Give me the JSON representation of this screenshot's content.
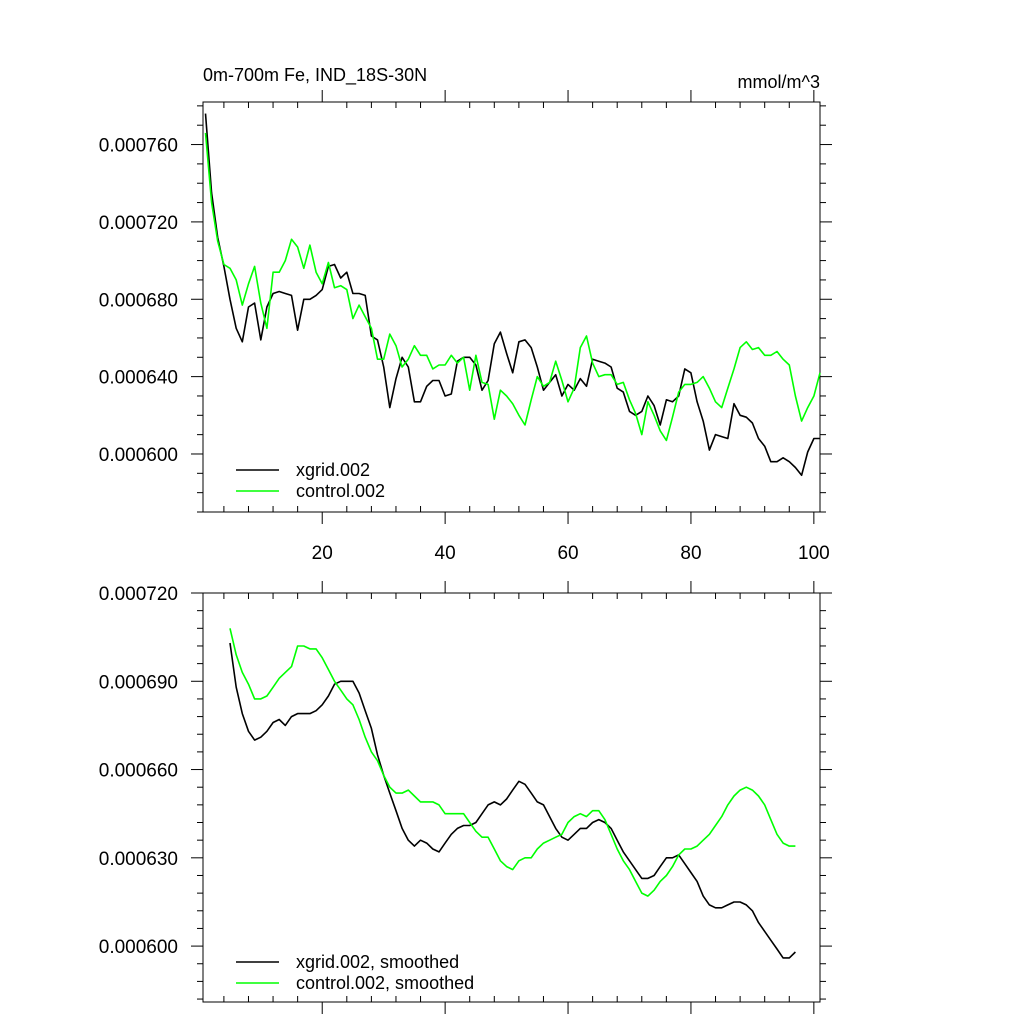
{
  "chart_data": [
    {
      "type": "line",
      "title": "0m-700m Fe, IND_18S-30N",
      "units": "mmol/m^3",
      "xlim": [
        0.6,
        101
      ],
      "ylim": [
        0.00057,
        0.000782
      ],
      "x_ticks": [
        20,
        40,
        60,
        80,
        100
      ],
      "x_tick_labels": [
        "20",
        "40",
        "60",
        "80",
        "100"
      ],
      "x_minor_step": 4,
      "y_ticks": [
        0.0006,
        0.00064,
        0.00068,
        0.00072,
        0.00076
      ],
      "y_tick_labels": [
        "0.000600",
        "0.000640",
        "0.000680",
        "0.000720",
        "0.000760"
      ],
      "y_minor_step": 1e-05,
      "legend": "bottom-left",
      "series": [
        {
          "name": "xgrid.002",
          "color": "#000000",
          "x": [
            1,
            2,
            3,
            4,
            5,
            6,
            7,
            8,
            9,
            10,
            11,
            12,
            13,
            14,
            15,
            16,
            17,
            18,
            19,
            20,
            21,
            22,
            23,
            24,
            25,
            26,
            27,
            28,
            29,
            30,
            31,
            32,
            33,
            34,
            35,
            36,
            37,
            38,
            39,
            40,
            41,
            42,
            43,
            44,
            45,
            46,
            47,
            48,
            49,
            50,
            51,
            52,
            53,
            54,
            55,
            56,
            57,
            58,
            59,
            60,
            61,
            62,
            63,
            64,
            65,
            66,
            67,
            68,
            69,
            70,
            71,
            72,
            73,
            74,
            75,
            76,
            77,
            78,
            79,
            80,
            81,
            82,
            83,
            84,
            85,
            86,
            87,
            88,
            89,
            90,
            91,
            92,
            93,
            94,
            95,
            96,
            97,
            98,
            99,
            100,
            101
          ],
          "values": [
            0.000776,
            0.000735,
            0.000712,
            0.000697,
            0.00068,
            0.000665,
            0.000658,
            0.000676,
            0.000678,
            0.000659,
            0.000676,
            0.000683,
            0.000684,
            0.000683,
            0.000682,
            0.000664,
            0.00068,
            0.00068,
            0.000682,
            0.000685,
            0.000697,
            0.000698,
            0.000691,
            0.000694,
            0.000683,
            0.000683,
            0.000682,
            0.000661,
            0.000659,
            0.000645,
            0.000624,
            0.000639,
            0.00065,
            0.000645,
            0.000627,
            0.000627,
            0.000635,
            0.000638,
            0.000638,
            0.00063,
            0.000631,
            0.000648,
            0.00065,
            0.00065,
            0.000646,
            0.000633,
            0.000638,
            0.000657,
            0.000663,
            0.000652,
            0.000642,
            0.000658,
            0.000659,
            0.000655,
            0.000645,
            0.000633,
            0.000637,
            0.000641,
            0.00063,
            0.000636,
            0.000633,
            0.000639,
            0.000635,
            0.000649,
            0.000648,
            0.000647,
            0.000645,
            0.000634,
            0.000632,
            0.000622,
            0.00062,
            0.000622,
            0.00063,
            0.000625,
            0.000615,
            0.000628,
            0.000627,
            0.00063,
            0.000644,
            0.000642,
            0.000627,
            0.000617,
            0.000602,
            0.00061,
            0.000609,
            0.000608,
            0.000626,
            0.00062,
            0.000619,
            0.000616,
            0.000608,
            0.000604,
            0.000596,
            0.000596,
            0.000598,
            0.000596,
            0.000593,
            0.000589,
            0.000601,
            0.000608,
            0.000608
          ]
        },
        {
          "name": "control.002",
          "color": "#00ff00",
          "x": [
            1,
            2,
            3,
            4,
            5,
            6,
            7,
            8,
            9,
            10,
            11,
            12,
            13,
            14,
            15,
            16,
            17,
            18,
            19,
            20,
            21,
            22,
            23,
            24,
            25,
            26,
            27,
            28,
            29,
            30,
            31,
            32,
            33,
            34,
            35,
            36,
            37,
            38,
            39,
            40,
            41,
            42,
            43,
            44,
            45,
            46,
            47,
            48,
            49,
            50,
            51,
            52,
            53,
            54,
            55,
            56,
            57,
            58,
            59,
            60,
            61,
            62,
            63,
            64,
            65,
            66,
            67,
            68,
            69,
            70,
            71,
            72,
            73,
            74,
            75,
            76,
            77,
            78,
            79,
            80,
            81,
            82,
            83,
            84,
            85,
            86,
            87,
            88,
            89,
            90,
            91,
            92,
            93,
            94,
            95,
            96,
            97,
            98,
            99,
            100,
            101
          ],
          "values": [
            0.000766,
            0.00073,
            0.00071,
            0.000698,
            0.000696,
            0.00069,
            0.000677,
            0.000688,
            0.000697,
            0.000678,
            0.000665,
            0.000694,
            0.000694,
            0.0007,
            0.000711,
            0.000707,
            0.000696,
            0.000708,
            0.000694,
            0.000688,
            0.000699,
            0.000686,
            0.000687,
            0.000685,
            0.00067,
            0.000677,
            0.000671,
            0.000665,
            0.000649,
            0.000649,
            0.000662,
            0.000656,
            0.000645,
            0.000649,
            0.000656,
            0.000651,
            0.000651,
            0.000644,
            0.000646,
            0.000646,
            0.000651,
            0.000647,
            0.00065,
            0.000633,
            0.000651,
            0.000637,
            0.000636,
            0.000618,
            0.000633,
            0.00063,
            0.000626,
            0.00062,
            0.000615,
            0.000628,
            0.00064,
            0.000635,
            0.000637,
            0.000648,
            0.000638,
            0.000627,
            0.000634,
            0.000655,
            0.000661,
            0.000647,
            0.00064,
            0.000641,
            0.000641,
            0.000636,
            0.000637,
            0.000628,
            0.000621,
            0.00061,
            0.000627,
            0.00062,
            0.000612,
            0.000607,
            0.000619,
            0.000632,
            0.000636,
            0.000636,
            0.000637,
            0.00064,
            0.000634,
            0.000627,
            0.000624,
            0.000634,
            0.000644,
            0.000655,
            0.000658,
            0.000654,
            0.000655,
            0.000651,
            0.000651,
            0.000653,
            0.000649,
            0.000646,
            0.00063,
            0.000617,
            0.000624,
            0.00063,
            0.000642
          ]
        }
      ]
    },
    {
      "type": "line",
      "title": "",
      "units": "",
      "xlim": [
        0.6,
        101
      ],
      "ylim": [
        0.000581,
        0.00072
      ],
      "x_ticks": [
        20,
        40,
        60,
        80,
        100
      ],
      "x_tick_labels": [
        "",
        "",
        "",
        "",
        ""
      ],
      "x_minor_step": 4,
      "y_ticks": [
        0.0006,
        0.00063,
        0.00066,
        0.00069,
        0.00072
      ],
      "y_tick_labels": [
        "0.000600",
        "0.000630",
        "0.000660",
        "0.000690",
        "0.000720"
      ],
      "y_minor_step": 6e-06,
      "legend": "bottom-left",
      "series": [
        {
          "name": "xgrid.002, smoothed",
          "color": "#000000",
          "x": [
            5,
            6,
            7,
            8,
            9,
            10,
            11,
            12,
            13,
            14,
            15,
            16,
            17,
            18,
            19,
            20,
            21,
            22,
            23,
            24,
            25,
            26,
            27,
            28,
            29,
            30,
            31,
            32,
            33,
            34,
            35,
            36,
            37,
            38,
            39,
            40,
            41,
            42,
            43,
            44,
            45,
            46,
            47,
            48,
            49,
            50,
            51,
            52,
            53,
            54,
            55,
            56,
            57,
            58,
            59,
            60,
            61,
            62,
            63,
            64,
            65,
            66,
            67,
            68,
            69,
            70,
            71,
            72,
            73,
            74,
            75,
            76,
            77,
            78,
            79,
            80,
            81,
            82,
            83,
            84,
            85,
            86,
            87,
            88,
            89,
            90,
            91,
            92,
            93,
            94,
            95,
            96,
            97
          ],
          "values": [
            0.000703,
            0.000688,
            0.000679,
            0.000673,
            0.00067,
            0.000671,
            0.000673,
            0.000676,
            0.000677,
            0.000675,
            0.000678,
            0.000679,
            0.000679,
            0.000679,
            0.00068,
            0.000682,
            0.000685,
            0.000689,
            0.00069,
            0.00069,
            0.00069,
            0.000686,
            0.00068,
            0.000674,
            0.000665,
            0.000658,
            0.000652,
            0.000646,
            0.00064,
            0.000636,
            0.000634,
            0.000636,
            0.000635,
            0.000633,
            0.000632,
            0.000635,
            0.000638,
            0.00064,
            0.000641,
            0.000641,
            0.000642,
            0.000645,
            0.000648,
            0.000649,
            0.000648,
            0.00065,
            0.000653,
            0.000656,
            0.000655,
            0.000652,
            0.000649,
            0.000648,
            0.000644,
            0.00064,
            0.000637,
            0.000636,
            0.000638,
            0.00064,
            0.00064,
            0.000642,
            0.000643,
            0.000642,
            0.00064,
            0.000636,
            0.000632,
            0.000629,
            0.000626,
            0.000623,
            0.000623,
            0.000624,
            0.000627,
            0.00063,
            0.00063,
            0.000631,
            0.000628,
            0.000625,
            0.000622,
            0.000617,
            0.000614,
            0.000613,
            0.000613,
            0.000614,
            0.000615,
            0.000615,
            0.000614,
            0.000612,
            0.000608,
            0.000605,
            0.000602,
            0.000599,
            0.000596,
            0.000596,
            0.000598
          ]
        },
        {
          "name": "control.002, smoothed",
          "color": "#00ff00",
          "x": [
            5,
            6,
            7,
            8,
            9,
            10,
            11,
            12,
            13,
            14,
            15,
            16,
            17,
            18,
            19,
            20,
            21,
            22,
            23,
            24,
            25,
            26,
            27,
            28,
            29,
            30,
            31,
            32,
            33,
            34,
            35,
            36,
            37,
            38,
            39,
            40,
            41,
            42,
            43,
            44,
            45,
            46,
            47,
            48,
            49,
            50,
            51,
            52,
            53,
            54,
            55,
            56,
            57,
            58,
            59,
            60,
            61,
            62,
            63,
            64,
            65,
            66,
            67,
            68,
            69,
            70,
            71,
            72,
            73,
            74,
            75,
            76,
            77,
            78,
            79,
            80,
            81,
            82,
            83,
            84,
            85,
            86,
            87,
            88,
            89,
            90,
            91,
            92,
            93,
            94,
            95,
            96,
            97
          ],
          "values": [
            0.000708,
            0.000699,
            0.000693,
            0.000689,
            0.000684,
            0.000684,
            0.000685,
            0.000688,
            0.000691,
            0.000693,
            0.000695,
            0.000702,
            0.000702,
            0.000701,
            0.000701,
            0.000698,
            0.000694,
            0.00069,
            0.000687,
            0.000684,
            0.000682,
            0.000677,
            0.000671,
            0.000666,
            0.000663,
            0.000658,
            0.000654,
            0.000652,
            0.000652,
            0.000653,
            0.000651,
            0.000649,
            0.000649,
            0.000649,
            0.000648,
            0.000645,
            0.000645,
            0.000645,
            0.000645,
            0.000642,
            0.000639,
            0.000637,
            0.000637,
            0.000633,
            0.000629,
            0.000627,
            0.000626,
            0.000629,
            0.00063,
            0.00063,
            0.000633,
            0.000635,
            0.000636,
            0.000637,
            0.000638,
            0.000642,
            0.000644,
            0.000645,
            0.000644,
            0.000646,
            0.000646,
            0.000643,
            0.000638,
            0.000633,
            0.000629,
            0.000626,
            0.000622,
            0.000618,
            0.000617,
            0.000619,
            0.000622,
            0.000624,
            0.000627,
            0.000631,
            0.000633,
            0.000633,
            0.000634,
            0.000636,
            0.000638,
            0.000641,
            0.000644,
            0.000648,
            0.000651,
            0.000653,
            0.000654,
            0.000653,
            0.000651,
            0.000648,
            0.000643,
            0.000638,
            0.000635,
            0.000634,
            0.000634
          ]
        }
      ]
    }
  ]
}
